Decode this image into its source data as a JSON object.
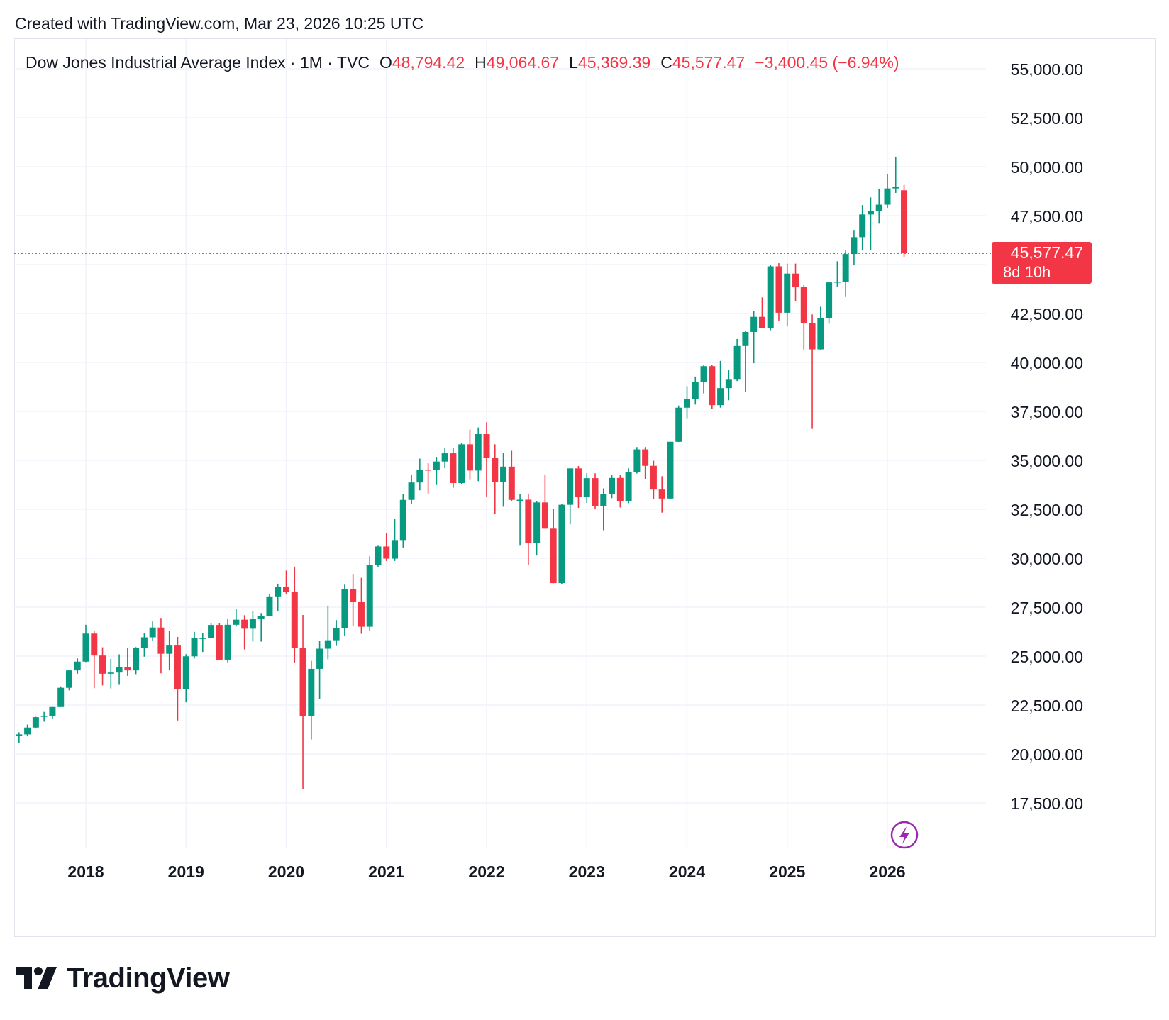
{
  "header": {
    "created_text": "Created with TradingView.com, Mar 23, 2026 10:25 UTC"
  },
  "legend": {
    "symbol": "Dow Jones Industrial Average Index · 1M · TVC",
    "open_label": "O",
    "open_value": "48,794.42",
    "high_label": "H",
    "high_value": "49,064.67",
    "low_label": "L",
    "low_value": "45,369.39",
    "close_label": "C",
    "close_value": "45,577.47",
    "change": "−3,400.45 (−6.94%)"
  },
  "price_badge": {
    "price": "45,577.47",
    "countdown": "8d 10h"
  },
  "footer": {
    "brand": "TradingView"
  },
  "colors": {
    "up": "#089981",
    "down": "#f23645",
    "grid": "#f0f3fa",
    "text": "#131722"
  },
  "icons": {
    "lightning": "lightning-icon",
    "logo": "tradingview-logo-icon"
  },
  "chart_data": {
    "type": "candlestick",
    "series_name": "Dow Jones Industrial Average Index",
    "interval": "1M",
    "x_ticks": [
      "2018",
      "2019",
      "2020",
      "2021",
      "2022",
      "2023",
      "2024",
      "2025",
      "2026"
    ],
    "y_ticks": [
      "17,500.00",
      "20,000.00",
      "22,500.00",
      "25,000.00",
      "27,500.00",
      "30,000.00",
      "32,500.00",
      "35,000.00",
      "37,500.00",
      "40,000.00",
      "42,500.00",
      "45,000.00",
      "47,500.00",
      "50,000.00",
      "52,500.00",
      "55,000.00"
    ],
    "ylim": [
      15500,
      56500
    ],
    "last_price": 45577.47,
    "grid": true,
    "candles": [
      {
        "t": "2017-05",
        "o": 20940,
        "h": 21110,
        "l": 20550,
        "c": 21000
      },
      {
        "t": "2017-06",
        "o": 21000,
        "h": 21500,
        "l": 20900,
        "c": 21350
      },
      {
        "t": "2017-07",
        "o": 21350,
        "h": 21900,
        "l": 21300,
        "c": 21880
      },
      {
        "t": "2017-08",
        "o": 21900,
        "h": 22150,
        "l": 21650,
        "c": 21950
      },
      {
        "t": "2017-09",
        "o": 21950,
        "h": 22400,
        "l": 21800,
        "c": 22400
      },
      {
        "t": "2017-10",
        "o": 22400,
        "h": 23450,
        "l": 22400,
        "c": 23380
      },
      {
        "t": "2017-11",
        "o": 23380,
        "h": 24300,
        "l": 23250,
        "c": 24270
      },
      {
        "t": "2017-12",
        "o": 24270,
        "h": 24880,
        "l": 24100,
        "c": 24720
      },
      {
        "t": "2018-01",
        "o": 24720,
        "h": 26600,
        "l": 24700,
        "c": 26150
      },
      {
        "t": "2018-02",
        "o": 26150,
        "h": 26300,
        "l": 23360,
        "c": 25030
      },
      {
        "t": "2018-03",
        "o": 25030,
        "h": 25450,
        "l": 23500,
        "c": 24100
      },
      {
        "t": "2018-04",
        "o": 24100,
        "h": 24860,
        "l": 23350,
        "c": 24160
      },
      {
        "t": "2018-05",
        "o": 24160,
        "h": 25090,
        "l": 23530,
        "c": 24420
      },
      {
        "t": "2018-06",
        "o": 24420,
        "h": 25400,
        "l": 23990,
        "c": 24270
      },
      {
        "t": "2018-07",
        "o": 24270,
        "h": 25460,
        "l": 24080,
        "c": 25420
      },
      {
        "t": "2018-08",
        "o": 25420,
        "h": 26170,
        "l": 24970,
        "c": 25960
      },
      {
        "t": "2018-09",
        "o": 25960,
        "h": 26770,
        "l": 25790,
        "c": 26460
      },
      {
        "t": "2018-10",
        "o": 26460,
        "h": 26950,
        "l": 24120,
        "c": 25120
      },
      {
        "t": "2018-11",
        "o": 25120,
        "h": 26280,
        "l": 24270,
        "c": 25540
      },
      {
        "t": "2018-12",
        "o": 25540,
        "h": 25980,
        "l": 21710,
        "c": 23330
      },
      {
        "t": "2019-01",
        "o": 23330,
        "h": 25100,
        "l": 22640,
        "c": 24990
      },
      {
        "t": "2019-02",
        "o": 24990,
        "h": 26240,
        "l": 24880,
        "c": 25920
      },
      {
        "t": "2019-03",
        "o": 25920,
        "h": 26160,
        "l": 25210,
        "c": 25930
      },
      {
        "t": "2019-04",
        "o": 25930,
        "h": 26700,
        "l": 25960,
        "c": 26590
      },
      {
        "t": "2019-05",
        "o": 26590,
        "h": 26700,
        "l": 24800,
        "c": 24820
      },
      {
        "t": "2019-06",
        "o": 24820,
        "h": 26900,
        "l": 24680,
        "c": 26600
      },
      {
        "t": "2019-07",
        "o": 26600,
        "h": 27400,
        "l": 26510,
        "c": 26860
      },
      {
        "t": "2019-08",
        "o": 26860,
        "h": 27090,
        "l": 25340,
        "c": 26400
      },
      {
        "t": "2019-09",
        "o": 26400,
        "h": 27300,
        "l": 25750,
        "c": 26920
      },
      {
        "t": "2019-10",
        "o": 26920,
        "h": 27200,
        "l": 25740,
        "c": 27050
      },
      {
        "t": "2019-11",
        "o": 27050,
        "h": 28170,
        "l": 27040,
        "c": 28050
      },
      {
        "t": "2019-12",
        "o": 28050,
        "h": 28700,
        "l": 27320,
        "c": 28540
      },
      {
        "t": "2020-01",
        "o": 28540,
        "h": 29370,
        "l": 28170,
        "c": 28260
      },
      {
        "t": "2020-02",
        "o": 28260,
        "h": 29570,
        "l": 24680,
        "c": 25410
      },
      {
        "t": "2020-03",
        "o": 25410,
        "h": 27100,
        "l": 18210,
        "c": 21920
      },
      {
        "t": "2020-04",
        "o": 21920,
        "h": 24760,
        "l": 20740,
        "c": 24350
      },
      {
        "t": "2020-05",
        "o": 24350,
        "h": 25760,
        "l": 22790,
        "c": 25380
      },
      {
        "t": "2020-06",
        "o": 25380,
        "h": 27580,
        "l": 24840,
        "c": 25810
      },
      {
        "t": "2020-07",
        "o": 25810,
        "h": 26840,
        "l": 25520,
        "c": 26430
      },
      {
        "t": "2020-08",
        "o": 26430,
        "h": 28650,
        "l": 26020,
        "c": 28430
      },
      {
        "t": "2020-09",
        "o": 28430,
        "h": 29200,
        "l": 26540,
        "c": 27780
      },
      {
        "t": "2020-10",
        "o": 27780,
        "h": 29000,
        "l": 26140,
        "c": 26500
      },
      {
        "t": "2020-11",
        "o": 26500,
        "h": 30100,
        "l": 26270,
        "c": 29640
      },
      {
        "t": "2020-12",
        "o": 29640,
        "h": 30640,
        "l": 29570,
        "c": 30600
      },
      {
        "t": "2021-01",
        "o": 30600,
        "h": 31270,
        "l": 29860,
        "c": 29980
      },
      {
        "t": "2021-02",
        "o": 29980,
        "h": 32010,
        "l": 29860,
        "c": 30930
      },
      {
        "t": "2021-03",
        "o": 30930,
        "h": 33260,
        "l": 30550,
        "c": 32980
      },
      {
        "t": "2021-04",
        "o": 32980,
        "h": 34260,
        "l": 32780,
        "c": 33870
      },
      {
        "t": "2021-05",
        "o": 33870,
        "h": 35090,
        "l": 33470,
        "c": 34530
      },
      {
        "t": "2021-06",
        "o": 34530,
        "h": 34850,
        "l": 33270,
        "c": 34500
      },
      {
        "t": "2021-07",
        "o": 34500,
        "h": 35180,
        "l": 33740,
        "c": 34940
      },
      {
        "t": "2021-08",
        "o": 34940,
        "h": 35630,
        "l": 34600,
        "c": 35360
      },
      {
        "t": "2021-09",
        "o": 35360,
        "h": 35630,
        "l": 33600,
        "c": 33840
      },
      {
        "t": "2021-10",
        "o": 33840,
        "h": 35890,
        "l": 33790,
        "c": 35820
      },
      {
        "t": "2021-11",
        "o": 35820,
        "h": 36570,
        "l": 34000,
        "c": 34480
      },
      {
        "t": "2021-12",
        "o": 34480,
        "h": 36680,
        "l": 33940,
        "c": 36340
      },
      {
        "t": "2022-01",
        "o": 36340,
        "h": 36950,
        "l": 33150,
        "c": 35130
      },
      {
        "t": "2022-02",
        "o": 35130,
        "h": 35820,
        "l": 32270,
        "c": 33890
      },
      {
        "t": "2022-03",
        "o": 33890,
        "h": 35370,
        "l": 32630,
        "c": 34680
      },
      {
        "t": "2022-04",
        "o": 34680,
        "h": 35490,
        "l": 32910,
        "c": 32980
      },
      {
        "t": "2022-05",
        "o": 32980,
        "h": 33270,
        "l": 30640,
        "c": 32990
      },
      {
        "t": "2022-06",
        "o": 32990,
        "h": 33300,
        "l": 29650,
        "c": 30780
      },
      {
        "t": "2022-07",
        "o": 30780,
        "h": 32910,
        "l": 30140,
        "c": 32850
      },
      {
        "t": "2022-08",
        "o": 32850,
        "h": 34280,
        "l": 31510,
        "c": 31510
      },
      {
        "t": "2022-09",
        "o": 31510,
        "h": 32500,
        "l": 28720,
        "c": 28730
      },
      {
        "t": "2022-10",
        "o": 28730,
        "h": 32760,
        "l": 28660,
        "c": 32730
      },
      {
        "t": "2022-11",
        "o": 32730,
        "h": 34590,
        "l": 31730,
        "c": 34590
      },
      {
        "t": "2022-12",
        "o": 34590,
        "h": 34710,
        "l": 32570,
        "c": 33150
      },
      {
        "t": "2023-01",
        "o": 33150,
        "h": 34340,
        "l": 32820,
        "c": 34090
      },
      {
        "t": "2023-02",
        "o": 34090,
        "h": 34340,
        "l": 32500,
        "c": 32660
      },
      {
        "t": "2023-03",
        "o": 32660,
        "h": 33570,
        "l": 31430,
        "c": 33270
      },
      {
        "t": "2023-04",
        "o": 33270,
        "h": 34260,
        "l": 33070,
        "c": 34100
      },
      {
        "t": "2023-05",
        "o": 34100,
        "h": 34260,
        "l": 32590,
        "c": 32910
      },
      {
        "t": "2023-06",
        "o": 32910,
        "h": 34590,
        "l": 32810,
        "c": 34410
      },
      {
        "t": "2023-07",
        "o": 34410,
        "h": 35680,
        "l": 34330,
        "c": 35560
      },
      {
        "t": "2023-08",
        "o": 35560,
        "h": 35680,
        "l": 34030,
        "c": 34720
      },
      {
        "t": "2023-09",
        "o": 34720,
        "h": 34980,
        "l": 33010,
        "c": 33510
      },
      {
        "t": "2023-10",
        "o": 33510,
        "h": 34190,
        "l": 32330,
        "c": 33050
      },
      {
        "t": "2023-11",
        "o": 33050,
        "h": 35950,
        "l": 33040,
        "c": 35950
      },
      {
        "t": "2023-12",
        "o": 35950,
        "h": 37800,
        "l": 35940,
        "c": 37690
      },
      {
        "t": "2024-01",
        "o": 37690,
        "h": 38790,
        "l": 37120,
        "c": 38150
      },
      {
        "t": "2024-02",
        "o": 38150,
        "h": 39280,
        "l": 37850,
        "c": 38990
      },
      {
        "t": "2024-03",
        "o": 38990,
        "h": 39890,
        "l": 38420,
        "c": 39810
      },
      {
        "t": "2024-04",
        "o": 39810,
        "h": 39890,
        "l": 37610,
        "c": 37820
      },
      {
        "t": "2024-05",
        "o": 37820,
        "h": 40080,
        "l": 37690,
        "c": 38690
      },
      {
        "t": "2024-06",
        "o": 38690,
        "h": 39600,
        "l": 38070,
        "c": 39120
      },
      {
        "t": "2024-07",
        "o": 39120,
        "h": 41200,
        "l": 39050,
        "c": 40840
      },
      {
        "t": "2024-08",
        "o": 40840,
        "h": 41590,
        "l": 38500,
        "c": 41560
      },
      {
        "t": "2024-09",
        "o": 41560,
        "h": 42630,
        "l": 39960,
        "c": 42330
      },
      {
        "t": "2024-10",
        "o": 42330,
        "h": 43320,
        "l": 41760,
        "c": 41760
      },
      {
        "t": "2024-11",
        "o": 41760,
        "h": 44970,
        "l": 41650,
        "c": 44910
      },
      {
        "t": "2024-12",
        "o": 44910,
        "h": 45070,
        "l": 42140,
        "c": 42540
      },
      {
        "t": "2025-01",
        "o": 42540,
        "h": 45050,
        "l": 41840,
        "c": 44540
      },
      {
        "t": "2025-02",
        "o": 44540,
        "h": 45050,
        "l": 43150,
        "c": 43840
      },
      {
        "t": "2025-03",
        "o": 43840,
        "h": 43950,
        "l": 40660,
        "c": 42000
      },
      {
        "t": "2025-04",
        "o": 42000,
        "h": 42450,
        "l": 36610,
        "c": 40670
      },
      {
        "t": "2025-05",
        "o": 40670,
        "h": 42850,
        "l": 40620,
        "c": 42270
      },
      {
        "t": "2025-06",
        "o": 42270,
        "h": 44100,
        "l": 41980,
        "c": 44090
      },
      {
        "t": "2025-07",
        "o": 44090,
        "h": 45170,
        "l": 43880,
        "c": 44130
      },
      {
        "t": "2025-08",
        "o": 44130,
        "h": 45760,
        "l": 43340,
        "c": 45540
      },
      {
        "t": "2025-09",
        "o": 45540,
        "h": 46770,
        "l": 44960,
        "c": 46400
      },
      {
        "t": "2025-10",
        "o": 46400,
        "h": 48040,
        "l": 45720,
        "c": 47560
      },
      {
        "t": "2025-11",
        "o": 47560,
        "h": 48430,
        "l": 45730,
        "c": 47720
      },
      {
        "t": "2025-12",
        "o": 47720,
        "h": 48880,
        "l": 47090,
        "c": 48060
      },
      {
        "t": "2026-01",
        "o": 48060,
        "h": 49630,
        "l": 47900,
        "c": 48890
      },
      {
        "t": "2026-02",
        "o": 48890,
        "h": 50510,
        "l": 48660,
        "c": 48980
      },
      {
        "t": "2026-03",
        "o": 48794.42,
        "h": 49064.67,
        "l": 45369.39,
        "c": 45577.47
      }
    ]
  }
}
